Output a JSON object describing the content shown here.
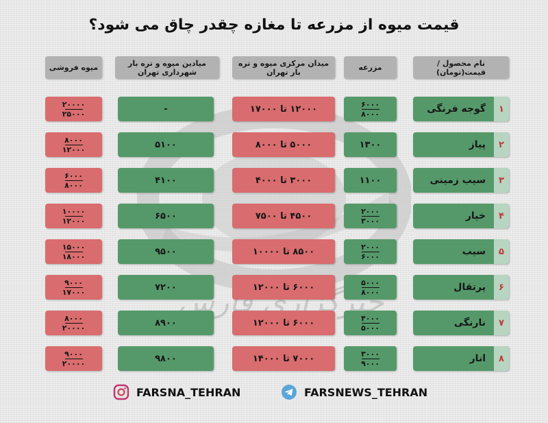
{
  "title": "قیمت میوه از مزرعه تا مغازه چقدر چاق می شود؟",
  "headers": {
    "product": "نام محصول /قیمت(تومان)",
    "farm": "مزرعه",
    "central": "میدان مرکزی میوه و تره بار تهران",
    "municipal": "میادین میوه و تره بار شهرداری تهران",
    "retail": "میوه فروشی"
  },
  "rows": [
    {
      "num": "۱",
      "name": "گوجه فرنگی",
      "farm_top": "۶۰۰۰",
      "farm_bottom": "۸۰۰۰",
      "central": "۱۲۰۰۰ تا ۱۷۰۰۰",
      "municipal": "-",
      "retail_top": "۲۰۰۰۰",
      "retail_bottom": "۲۵۰۰۰"
    },
    {
      "num": "۲",
      "name": "پیاز",
      "farm": "۱۳۰۰",
      "central": "۵۰۰۰ تا ۸۰۰۰",
      "municipal": "۵۱۰۰",
      "retail_top": "۸۰۰۰",
      "retail_bottom": "۱۲۰۰۰"
    },
    {
      "num": "۳",
      "name": "سیب زمینی",
      "farm": "۱۱۰۰",
      "central": "۳۰۰۰ تا ۴۰۰۰",
      "municipal": "۴۱۰۰",
      "retail_top": "۶۰۰۰",
      "retail_bottom": "۸۰۰۰"
    },
    {
      "num": "۴",
      "name": "خیار",
      "farm_top": "۲۰۰۰",
      "farm_bottom": "۳۰۰۰",
      "central": "۴۵۰۰ تا ۷۵۰۰",
      "municipal": "۶۵۰۰",
      "retail_top": "۱۰۰۰۰",
      "retail_bottom": "۱۲۰۰۰"
    },
    {
      "num": "۵",
      "name": "سیب",
      "farm_top": "۲۰۰۰",
      "farm_bottom": "۶۰۰۰",
      "central": "۸۵۰۰ تا ۱۰۰۰۰",
      "municipal": "۹۵۰۰",
      "retail_top": "۱۵۰۰۰",
      "retail_bottom": "۱۸۰۰۰"
    },
    {
      "num": "۶",
      "name": "پرتقال",
      "farm_top": "۵۰۰۰",
      "farm_bottom": "۸۰۰۰",
      "central": "۶۰۰۰ تا ۱۲۰۰۰",
      "municipal": "۷۲۰۰",
      "retail_top": "۹۰۰۰",
      "retail_bottom": "۱۷۰۰۰"
    },
    {
      "num": "۷",
      "name": "نارنگی",
      "farm_top": "۴۰۰۰",
      "farm_bottom": "۵۰۰۰",
      "central": "۶۰۰۰ تا ۱۲۰۰۰",
      "municipal": "۸۹۰۰",
      "retail_top": "۸۰۰۰",
      "retail_bottom": "۲۰۰۰۰"
    },
    {
      "num": "۸",
      "name": "انار",
      "farm_top": "۳۰۰۰",
      "farm_bottom": "۹۰۰۰",
      "central": "۷۰۰۰ تا ۱۴۰۰۰",
      "municipal": "۹۸۰۰",
      "retail_top": "۹۰۰۰",
      "retail_bottom": "۲۰۰۰۰"
    }
  ],
  "colors": {
    "red": "#d96c6e",
    "green": "#55996a",
    "header": "#b2b2b2"
  },
  "watermark_text": "خبرگزاری فارس",
  "footer": {
    "instagram": "FARSNA_TEHRAN",
    "telegram": "FARSNEWS_TEHRAN",
    "instagram_icon": "instagram-icon",
    "telegram_icon": "telegram-icon"
  }
}
